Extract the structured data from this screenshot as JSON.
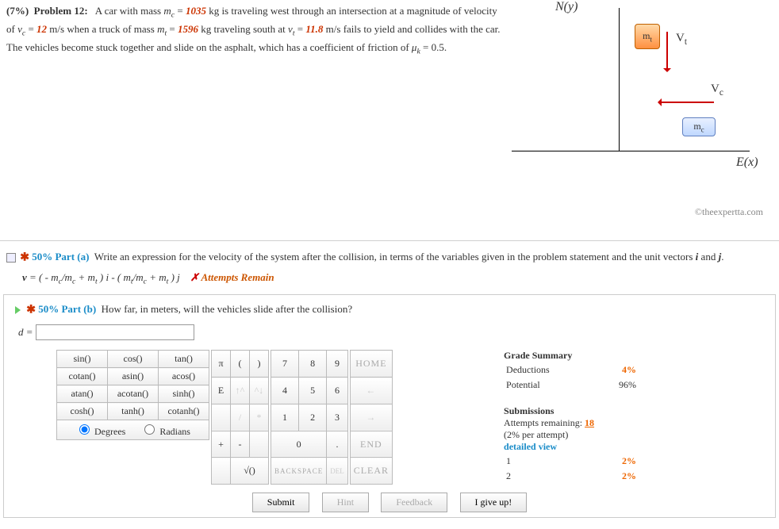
{
  "problem": {
    "pct": "(7%)",
    "label": "Problem 12:",
    "mc": "1035",
    "vc": "12",
    "mt": "1596",
    "vt": "11.8",
    "mu": "0.5",
    "text1a": "A car with mass ",
    "text1b": " kg is traveling west through an intersection at a magnitude of velocity of ",
    "text1c": " m/s when a truck of mass ",
    "text1d": " kg traveling south at ",
    "text1e": " m/s fails to yield and collides with the car. The vehicles become stuck together and slide on the asphalt, which has a coefficient of friction of ",
    "text1f": "."
  },
  "diagram": {
    "ny": "N(y)",
    "ex": "E(x)",
    "mt": "m",
    "mt_sub": "t",
    "mc": "m",
    "mc_sub": "c",
    "vt": "V",
    "vt_sub": "t",
    "vc": "V",
    "vc_sub": "c"
  },
  "copyright": "©theexpertta.com",
  "partA": {
    "pct": "50% Part (a)",
    "text": "Write an expression for the velocity of the system after the collision, in terms of the variables given in the problem statement and the unit vectors ",
    "i": "i",
    "and": " and ",
    "j": "j",
    "dot": ".",
    "expr_lhs": "v",
    "eq": " = ",
    "expr_rhs": "( - m",
    "expr_rest": " ) i - ( m",
    "expr_end": " ) j",
    "attempts": "✗ Attempts Remain"
  },
  "partB": {
    "pct": "50% Part (b)",
    "text": "How far, in meters, will the vehicles slide after the collision?",
    "var": "d",
    "eq": " = ",
    "placeholder": ""
  },
  "keypad": {
    "trig": [
      [
        "sin()",
        "cos()",
        "tan()"
      ],
      [
        "cotan()",
        "asin()",
        "acos()"
      ],
      [
        "atan()",
        "acotan()",
        "sinh()"
      ],
      [
        "cosh()",
        "tanh()",
        "cotanh()"
      ]
    ],
    "degrees": "Degrees",
    "radians": "Radians",
    "sym": [
      [
        "π",
        "(",
        ")"
      ],
      [
        "E",
        "↑^",
        "^↓"
      ],
      [
        "",
        "/",
        "*"
      ],
      [
        "+",
        "-",
        ""
      ],
      [
        "",
        "√()",
        ""
      ]
    ],
    "num": [
      [
        "7",
        "8",
        "9"
      ],
      [
        "4",
        "5",
        "6"
      ],
      [
        "1",
        "2",
        "3"
      ],
      [
        "0",
        "",
        ""
      ],
      [
        "BACKSPACE",
        "",
        ""
      ]
    ],
    "dot": ".",
    "zero": "0",
    "nav": [
      "HOME",
      "←",
      "→",
      "END",
      "CLEAR"
    ],
    "del": "DEL",
    "bksp": "BACKSPACE"
  },
  "grade": {
    "summary": "Grade Summary",
    "deductions": "Deductions",
    "deductions_val": "4%",
    "potential": "Potential",
    "potential_val": "96%",
    "submissions": "Submissions",
    "remaining": "Attempts remaining: ",
    "remaining_n": "18",
    "per": "(2% per attempt)",
    "detailed": "detailed view",
    "rows": [
      [
        "1",
        "2%"
      ],
      [
        "2",
        "2%"
      ]
    ]
  },
  "buttons": {
    "submit": "Submit",
    "hint": "Hint",
    "feedback": "Feedback",
    "giveup": "I give up!"
  }
}
